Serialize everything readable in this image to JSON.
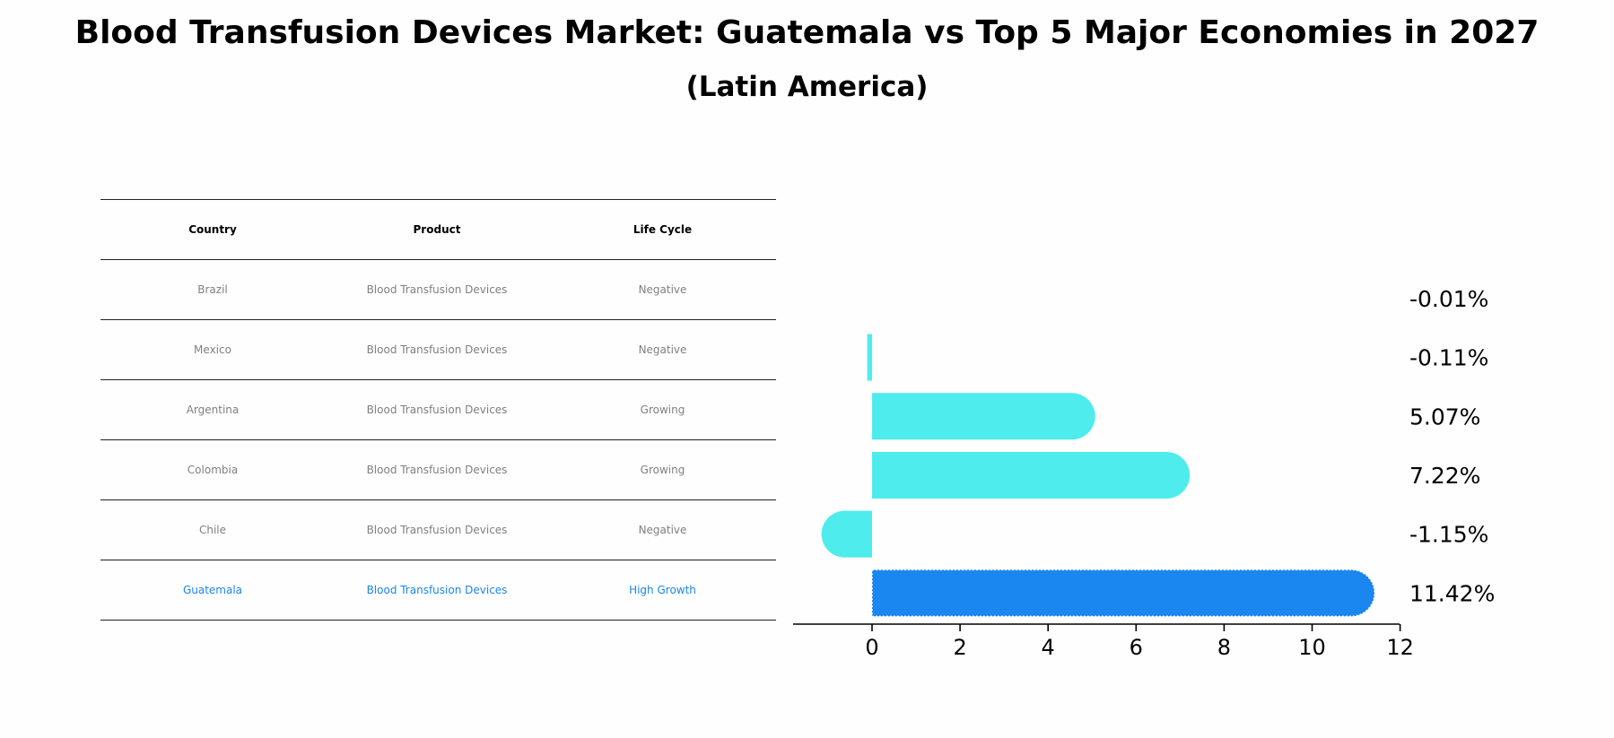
{
  "title": "Blood Transfusion Devices Market: Guatemala vs Top 5 Major Economies in 2027",
  "subtitle": "(Latin America)",
  "colors": {
    "bar": "#4eecec",
    "highlight": "#1a86f0",
    "muted_text": "#808080"
  },
  "table": {
    "headers": [
      "Country",
      "Product",
      "Life Cycle"
    ],
    "rows": [
      [
        "Brazil",
        "Blood Transfusion Devices",
        "Negative"
      ],
      [
        "Mexico",
        "Blood Transfusion Devices",
        "Negative"
      ],
      [
        "Argentina",
        "Blood Transfusion Devices",
        "Growing"
      ],
      [
        "Colombia",
        "Blood Transfusion Devices",
        "Growing"
      ],
      [
        "Chile",
        "Blood Transfusion Devices",
        "Negative"
      ],
      [
        "Guatemala",
        "Blood Transfusion Devices",
        "High Growth"
      ]
    ],
    "highlight_row": 5
  },
  "chart_data": {
    "type": "bar",
    "orientation": "horizontal",
    "categories": [
      "Brazil",
      "Mexico",
      "Argentina",
      "Colombia",
      "Chile",
      "Guatemala"
    ],
    "values": [
      -0.01,
      -0.11,
      5.07,
      7.22,
      -1.15,
      11.42
    ],
    "value_labels": [
      "-0.01%",
      "-0.11%",
      "5.07%",
      "7.22%",
      "-1.15%",
      "11.42%"
    ],
    "highlight_index": 5,
    "xlim": [
      -1.8,
      12
    ],
    "xticks": [
      0,
      2,
      4,
      6,
      8,
      10,
      12
    ],
    "grid": false
  }
}
